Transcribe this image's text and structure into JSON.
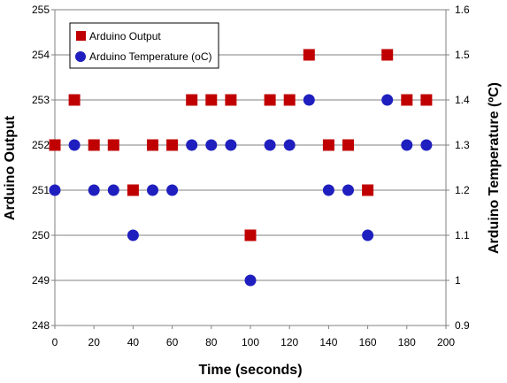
{
  "chart_data": {
    "type": "scatter",
    "xlabel": "Time (seconds)",
    "ylabel": "Arduino Output",
    "y2label": "Arduino Temperature (ºC)",
    "xlim": [
      0,
      200
    ],
    "ylim": [
      248,
      255
    ],
    "y2lim": [
      0.9,
      1.6
    ],
    "x_ticks": [
      "0",
      "20",
      "40",
      "60",
      "80",
      "100",
      "120",
      "140",
      "160",
      "180",
      "200"
    ],
    "y_ticks": [
      "248",
      "249",
      "250",
      "251",
      "252",
      "253",
      "254",
      "255"
    ],
    "y2_ticks": [
      "0.9",
      "1",
      "1.1",
      "1.2",
      "1.3",
      "1.4",
      "1.5",
      "1.6"
    ],
    "grid": "horizontal",
    "legend_position": "top-left",
    "colors": {
      "output": "#c00000",
      "temperature": "#1f1fbf",
      "grid": "#808080"
    },
    "series": [
      {
        "name": "Arduino Output",
        "marker": "square",
        "axis": "left",
        "x": [
          0,
          10,
          20,
          30,
          40,
          50,
          60,
          70,
          80,
          90,
          100,
          110,
          120,
          130,
          140,
          150,
          160,
          170,
          180,
          190
        ],
        "y": [
          252,
          253,
          252,
          252,
          251,
          252,
          252,
          253,
          253,
          253,
          250,
          253,
          253,
          254,
          252,
          252,
          251,
          254,
          253,
          253
        ]
      },
      {
        "name": "Arduino Temperature (oC)",
        "marker": "circle",
        "axis": "right",
        "x": [
          0,
          10,
          20,
          30,
          40,
          50,
          60,
          70,
          80,
          90,
          100,
          110,
          120,
          130,
          140,
          150,
          160,
          170,
          180,
          190
        ],
        "y": [
          1.2,
          1.3,
          1.2,
          1.2,
          1.1,
          1.2,
          1.2,
          1.3,
          1.3,
          1.3,
          1.0,
          1.3,
          1.3,
          1.4,
          1.2,
          1.2,
          1.1,
          1.4,
          1.3,
          1.3
        ]
      }
    ]
  }
}
